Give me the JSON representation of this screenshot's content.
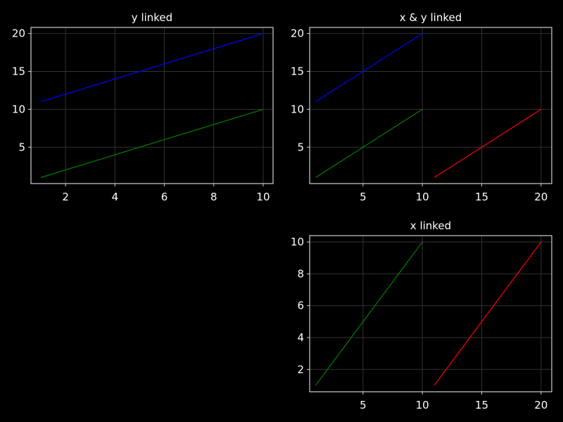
{
  "chart_data": [
    {
      "type": "line",
      "title": "y linked",
      "xlabel": "",
      "ylabel": "",
      "xlim": [
        0.6,
        10.4
      ],
      "ylim": [
        0.2,
        20.8
      ],
      "xticks": [
        2,
        4,
        6,
        8,
        10
      ],
      "yticks": [
        5,
        10,
        15,
        20
      ],
      "grid": true,
      "series": [
        {
          "color": "#0000ff",
          "x": [
            1,
            10
          ],
          "y": [
            11,
            20
          ]
        },
        {
          "color": "#008000",
          "x": [
            1,
            10
          ],
          "y": [
            1,
            10
          ]
        }
      ]
    },
    {
      "type": "line",
      "title": "x & y linked",
      "xlabel": "",
      "ylabel": "",
      "xlim": [
        0.5,
        20.9
      ],
      "ylim": [
        0.2,
        20.8
      ],
      "xticks": [
        5,
        10,
        15,
        20
      ],
      "yticks": [
        5,
        10,
        15,
        20
      ],
      "grid": true,
      "series": [
        {
          "color": "#0000ff",
          "x": [
            1,
            10
          ],
          "y": [
            11,
            20
          ]
        },
        {
          "color": "#008000",
          "x": [
            1,
            10
          ],
          "y": [
            1,
            10
          ]
        },
        {
          "color": "#ff0000",
          "x": [
            11,
            20
          ],
          "y": [
            1,
            10
          ]
        }
      ]
    },
    {
      "type": "line",
      "title": "x linked",
      "xlabel": "",
      "ylabel": "",
      "xlim": [
        0.5,
        20.9
      ],
      "ylim": [
        0.6,
        10.4
      ],
      "xticks": [
        5,
        10,
        15,
        20
      ],
      "yticks": [
        2,
        4,
        6,
        8,
        10
      ],
      "grid": true,
      "series": [
        {
          "color": "#008000",
          "x": [
            1,
            10
          ],
          "y": [
            1,
            10
          ]
        },
        {
          "color": "#ff0000",
          "x": [
            11,
            20
          ],
          "y": [
            1,
            10
          ]
        }
      ]
    }
  ]
}
